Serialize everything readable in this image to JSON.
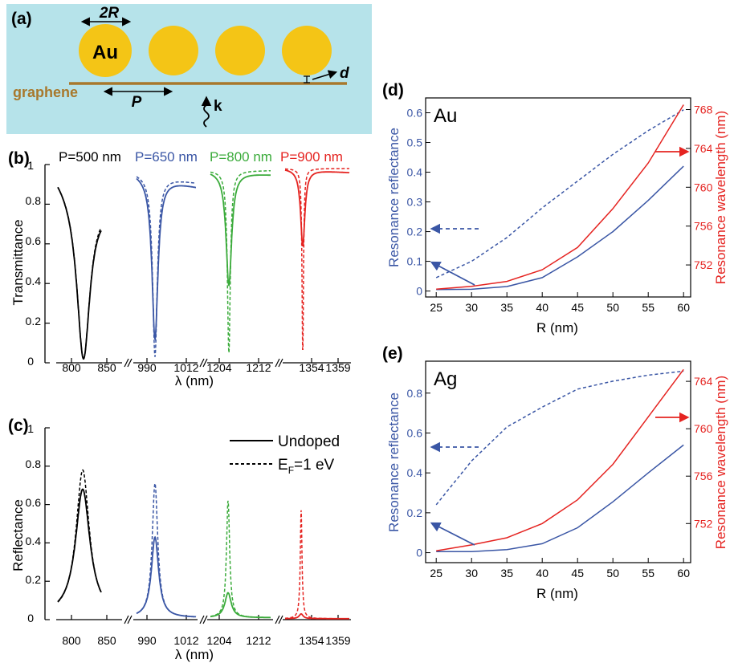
{
  "panel_a": {
    "label": "(a)",
    "dim_2r": "2R",
    "particle_label": "Au",
    "graphene_label": "graphene",
    "dim_p": "P",
    "dim_d": "d",
    "wave_label": "k",
    "colors": {
      "background": "#b6e3ea",
      "particle": "#f4c516",
      "graphene": "#a8782c"
    }
  },
  "panel_b": {
    "label": "(b)",
    "ylabel": "Transmittance",
    "xlabel": "λ (nm)",
    "period_labels": [
      "P=500 nm",
      "P=650 nm",
      "P=800 nm",
      "P=900 nm"
    ],
    "x_tick_labels": [
      "800",
      "850",
      "990",
      "1012",
      "1204",
      "1212",
      "1354",
      "1359"
    ],
    "y_tick_labels": [
      "0",
      "0.2",
      "0.4",
      "0.6",
      "0.8",
      "1"
    ]
  },
  "panel_c": {
    "label": "(c)",
    "ylabel": "Reflectance",
    "xlabel": "λ (nm)",
    "legend_solid": "Undoped",
    "legend_dashed_main": "E",
    "legend_dashed_sub": "F",
    "legend_dashed_rest": "=1 eV",
    "x_tick_labels": [
      "800",
      "850",
      "990",
      "1012",
      "1204",
      "1212",
      "1354",
      "1359"
    ],
    "y_tick_labels": [
      "0",
      "0.2",
      "0.4",
      "0.6",
      "0.8",
      "1"
    ]
  },
  "panel_d": {
    "label": "(d)",
    "metal": "Au",
    "xlabel": "R (nm)",
    "ylabel_left": "Resonance reflectance",
    "ylabel_right": "Resonance wavelength (nm)",
    "x_tick_labels": [
      "25",
      "30",
      "35",
      "40",
      "45",
      "50",
      "55",
      "60"
    ],
    "y_left_tick_labels": [
      "0",
      "0.1",
      "0.2",
      "0.3",
      "0.4",
      "0.5",
      "0.6"
    ],
    "y_right_tick_labels": [
      "752",
      "756",
      "760",
      "764",
      "768"
    ]
  },
  "panel_e": {
    "label": "(e)",
    "metal": "Ag",
    "xlabel": "R (nm)",
    "ylabel_left": "Resonance reflectance",
    "ylabel_right": "Resonance wavelength (nm)",
    "x_tick_labels": [
      "25",
      "30",
      "35",
      "40",
      "45",
      "50",
      "55",
      "60"
    ],
    "y_left_tick_labels": [
      "0",
      "0.2",
      "0.4",
      "0.6",
      "0.8"
    ],
    "y_right_tick_labels": [
      "752",
      "756",
      "760",
      "764"
    ]
  },
  "chart_data": [
    {
      "panel": "b",
      "type": "line",
      "ylabel": "Transmittance",
      "xlabel": "λ (nm)",
      "ylim": [
        0,
        1
      ],
      "series": [
        {
          "name": "P=500 nm",
          "color": "#000000",
          "x_range": [
            765,
            870
          ],
          "resonance_nm": 805,
          "min_undoped": 0.02,
          "min_doped": 0.02
        },
        {
          "name": "P=650 nm",
          "color": "#3a56a5",
          "x_range": [
            976,
            1018
          ],
          "resonance_nm": 992,
          "min_undoped": 0.12,
          "min_doped": 0.03
        },
        {
          "name": "P=800 nm",
          "color": "#3bab3b",
          "x_range": [
            1196,
            1216
          ],
          "resonance_nm": 1205.5,
          "min_undoped": 0.39,
          "min_doped": 0.05
        },
        {
          "name": "P=900 nm",
          "color": "#e52421",
          "x_range": [
            1350,
            1361
          ],
          "resonance_nm": 1353,
          "min_undoped": 0.59,
          "min_doped": 0.05
        }
      ]
    },
    {
      "panel": "c",
      "type": "line",
      "ylabel": "Reflectance",
      "xlabel": "λ (nm)",
      "ylim": [
        0,
        1
      ],
      "series": [
        {
          "name": "P=500 nm",
          "color": "#000000",
          "resonance_nm": 805,
          "peak_undoped": 0.68,
          "peak_doped": 0.78
        },
        {
          "name": "P=650 nm",
          "color": "#3a56a5",
          "resonance_nm": 992,
          "peak_undoped": 0.43,
          "peak_doped": 0.71
        },
        {
          "name": "P=800 nm",
          "color": "#3bab3b",
          "resonance_nm": 1205.5,
          "peak_undoped": 0.14,
          "peak_doped": 0.62
        },
        {
          "name": "P=900 nm",
          "color": "#e52421",
          "resonance_nm": 1353,
          "peak_undoped": 0.03,
          "peak_doped": 0.57
        }
      ]
    },
    {
      "panel": "d",
      "type": "line",
      "x": [
        25,
        30,
        35,
        40,
        45,
        50,
        55,
        60
      ],
      "xlabel": "R (nm)",
      "ylabel": "Resonance reflectance",
      "ylabel_right": "Resonance wavelength (nm)",
      "xlim": [
        23.5,
        61
      ],
      "ylim": [
        -0.02,
        0.65
      ],
      "ylim_right": [
        748.7,
        769.2
      ],
      "series": [
        {
          "color": "#3a56a5",
          "style": "solid",
          "axis": "left",
          "values": [
            0.005,
            0.006,
            0.015,
            0.045,
            0.115,
            0.2,
            0.305,
            0.42
          ]
        },
        {
          "color": "#3a56a5",
          "style": "dashed",
          "axis": "left",
          "values": [
            0.045,
            0.1,
            0.18,
            0.28,
            0.37,
            0.46,
            0.54,
            0.61
          ]
        },
        {
          "color": "#e52421",
          "style": "solid",
          "axis": "right",
          "values": [
            749.5,
            749.8,
            750.3,
            751.5,
            753.8,
            757.8,
            762.5,
            768.5
          ]
        }
      ]
    },
    {
      "panel": "e",
      "type": "line",
      "x": [
        25,
        30,
        35,
        40,
        45,
        50,
        55,
        60
      ],
      "xlabel": "R (nm)",
      "ylabel": "Resonance reflectance",
      "ylabel_right": "Resonance wavelength (nm)",
      "xlim": [
        23.5,
        61
      ],
      "ylim": [
        -0.05,
        0.96
      ],
      "ylim_right": [
        748.7,
        765.7
      ],
      "series": [
        {
          "color": "#3a56a5",
          "style": "solid",
          "axis": "left",
          "values": [
            0.005,
            0.005,
            0.015,
            0.045,
            0.125,
            0.255,
            0.4,
            0.54
          ]
        },
        {
          "color": "#3a56a5",
          "style": "dashed",
          "axis": "left",
          "values": [
            0.24,
            0.46,
            0.63,
            0.73,
            0.82,
            0.86,
            0.89,
            0.91
          ]
        },
        {
          "color": "#e52421",
          "style": "solid",
          "axis": "right",
          "values": [
            749.7,
            750.2,
            750.8,
            752.0,
            754.0,
            757.0,
            761.0,
            765.0
          ]
        }
      ]
    }
  ]
}
